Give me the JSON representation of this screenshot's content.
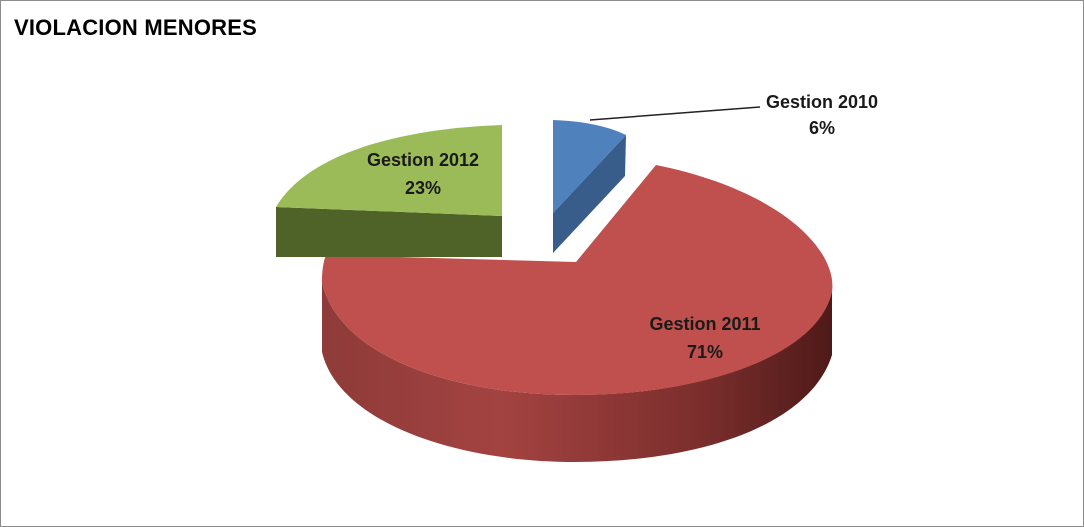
{
  "chart_data": {
    "type": "pie",
    "title": "VIOLACION MENORES",
    "categories": [
      "Gestion 2010",
      "Gestion 2011",
      "Gestion 2012"
    ],
    "values": [
      6,
      71,
      23
    ],
    "unit": "%",
    "labels": [
      {
        "name": "Gestion 2010",
        "value": "6%"
      },
      {
        "name": "Gestion 2011",
        "value": "71%"
      },
      {
        "name": "Gestion 2012",
        "value": "23%"
      }
    ],
    "colors": {
      "Gestion 2010": "#4f81bd",
      "Gestion 2011": "#c0504d",
      "Gestion 2012": "#9bbb59"
    },
    "style": "3d-exploded",
    "legend": "none"
  }
}
